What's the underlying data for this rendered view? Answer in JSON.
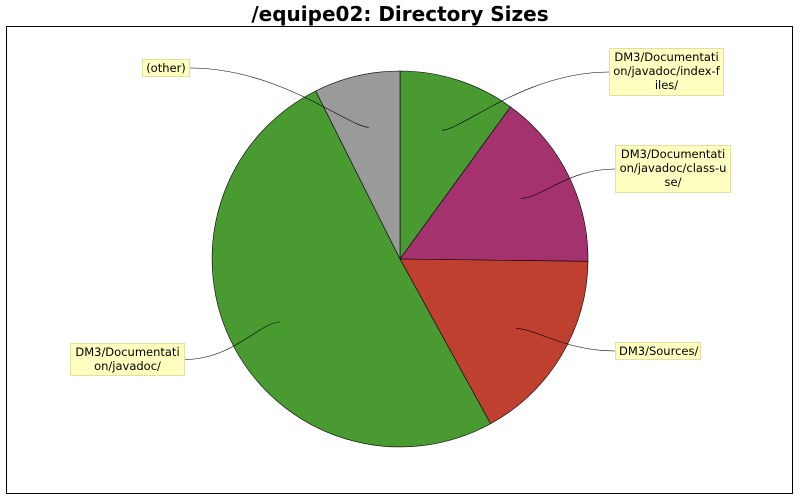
{
  "chart_data": {
    "type": "pie",
    "title": "/equipe02: Directory Sizes",
    "start_angle_deg": 0,
    "direction": "clockwise",
    "slices": [
      {
        "label": "DM3/Documentati\non/javadoc/index-f\niles/",
        "value": 10.0,
        "color": "#4a9a32"
      },
      {
        "label": "DM3/Documentati\non/javadoc/class-u\nse/",
        "value": 15.2,
        "color": "#a3326e"
      },
      {
        "label": "DM3/Sources/",
        "value": 16.8,
        "color": "#c04030"
      },
      {
        "label": "DM3/Documentati\non/javadoc/",
        "value": 50.6,
        "color": "#4a9a32"
      },
      {
        "label": "(other)",
        "value": 7.4,
        "color": "#9a9a9a"
      }
    ]
  }
}
